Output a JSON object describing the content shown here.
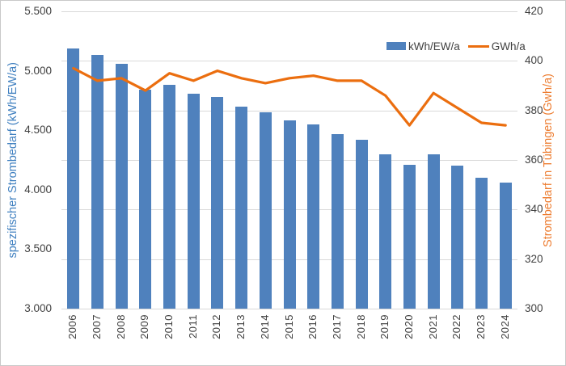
{
  "chart_data": {
    "type": "bar",
    "subtype": "combo-bar-line-dual-axis",
    "title": "",
    "categories": [
      "2006",
      "2007",
      "2008",
      "2009",
      "2010",
      "2011",
      "2012",
      "2013",
      "2014",
      "2015",
      "2016",
      "2017",
      "2018",
      "2019",
      "2020",
      "2021",
      "2022",
      "2023",
      "2024"
    ],
    "series": [
      {
        "name": "kWh/EW/a",
        "type": "bar",
        "axis": "left",
        "color": "#4f81bd",
        "values": [
          5190,
          5130,
          5060,
          4840,
          4880,
          4810,
          4780,
          4700,
          4650,
          4580,
          4550,
          4470,
          4420,
          4300,
          4210,
          4300,
          4200,
          4100,
          4060
        ]
      },
      {
        "name": "GWh/a",
        "type": "line",
        "axis": "right",
        "color": "#eb6e0f",
        "values": [
          397,
          392,
          393,
          388,
          395,
          392,
          396,
          393,
          391,
          393,
          394,
          392,
          392,
          386,
          374,
          387,
          381,
          375,
          374
        ]
      }
    ],
    "left_axis": {
      "title": "spezifischer Strombedarf (kWh/EW/a)",
      "color": "#4080c0",
      "min": 3000,
      "max": 5500,
      "step": 500,
      "tick_labels": [
        "5.500",
        "5.000",
        "4.500",
        "4.000",
        "3.500",
        "3.000"
      ]
    },
    "right_axis": {
      "title": "Strombedarf in Tübingen (Gwh/a)",
      "color": "#ed7d31",
      "min": 300,
      "max": 420,
      "step": 20,
      "tick_labels": [
        "420",
        "400",
        "380",
        "360",
        "340",
        "320",
        "300"
      ]
    },
    "legend": {
      "position": "top-right-inside",
      "entries": [
        "kWh/EW/a",
        "GWh/a"
      ]
    },
    "grid": {
      "horizontal": true,
      "follows": "right_axis",
      "color": "#d9d9d9"
    },
    "text_color": "#404040"
  }
}
